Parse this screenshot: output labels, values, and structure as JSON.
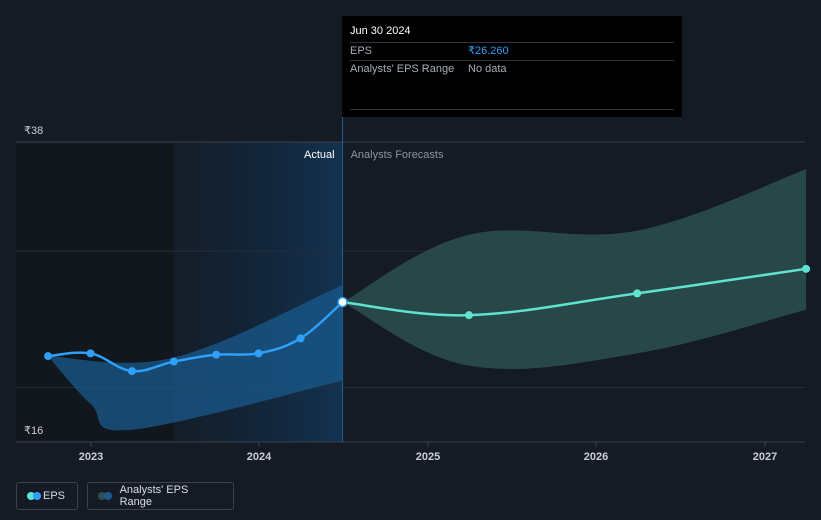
{
  "chart_data": {
    "type": "line",
    "y_axis": {
      "min": 16,
      "max": 38,
      "tick_labels": [
        "₹38",
        "₹16"
      ]
    },
    "x_axis": {
      "tick_labels": [
        "2023",
        "2024",
        "2025",
        "2026",
        "2027"
      ]
    },
    "section_labels": {
      "actual": "Actual",
      "forecast": "Analysts Forecasts"
    },
    "series": [
      {
        "name": "EPS",
        "color": "#2f9ff7",
        "points": [
          {
            "date": "2022-09-30",
            "y": 22.3
          },
          {
            "date": "2022-12-31",
            "y": 22.5
          },
          {
            "date": "2023-03-31",
            "y": 21.2
          },
          {
            "date": "2023-06-30",
            "y": 21.9
          },
          {
            "date": "2023-09-30",
            "y": 22.4
          },
          {
            "date": "2023-12-31",
            "y": 22.5
          },
          {
            "date": "2024-03-31",
            "y": 23.6
          },
          {
            "date": "2024-06-30",
            "y": 26.26
          }
        ]
      },
      {
        "name": "EPS forecast",
        "color": "#5fe3d0",
        "points": [
          {
            "date": "2024-06-30",
            "y": 26.26
          },
          {
            "date": "2025-03-31",
            "y": 25.3
          },
          {
            "date": "2026-03-31",
            "y": 26.9
          },
          {
            "date": "2027-03-31",
            "y": 28.7
          }
        ]
      }
    ],
    "range_bands": [
      {
        "name": "Analysts' EPS Range (actual)",
        "color": "#1a5a8c",
        "upper": [
          {
            "date": "2022-09-30",
            "y": 22.3
          },
          {
            "date": "2023-06-30",
            "y": 22.2
          },
          {
            "date": "2024-06-30",
            "y": 27.5
          }
        ],
        "lower": [
          {
            "date": "2022-09-30",
            "y": 22.3
          },
          {
            "date": "2022-12-31",
            "y": 18.8
          },
          {
            "date": "2023-03-31",
            "y": 16.9
          },
          {
            "date": "2024-06-30",
            "y": 20.5
          }
        ]
      },
      {
        "name": "Analysts' EPS Range (forecast)",
        "color": "#2c4f4f",
        "upper": [
          {
            "date": "2024-06-30",
            "y": 26.26
          },
          {
            "date": "2025-03-31",
            "y": 31.2
          },
          {
            "date": "2026-03-31",
            "y": 31.5
          },
          {
            "date": "2027-03-31",
            "y": 36.0
          }
        ],
        "lower": [
          {
            "date": "2024-06-30",
            "y": 26.26
          },
          {
            "date": "2025-03-31",
            "y": 21.6
          },
          {
            "date": "2026-03-31",
            "y": 22.5
          },
          {
            "date": "2027-03-31",
            "y": 25.7
          }
        ]
      }
    ],
    "gridlines": true,
    "legend_position": "bottom-left"
  },
  "tooltip": {
    "date": "Jun 30 2024",
    "rows": [
      {
        "label": "EPS",
        "value": "₹26.260"
      },
      {
        "label": "Analysts' EPS Range",
        "value": "No data"
      }
    ]
  },
  "legend": {
    "items": [
      {
        "label": "EPS",
        "colors": [
          "#5fe3d0",
          "#2f9ff7"
        ]
      },
      {
        "label": "Analysts' EPS Range",
        "colors": [
          "#2c4f4f",
          "#1a5a8c"
        ]
      }
    ]
  }
}
